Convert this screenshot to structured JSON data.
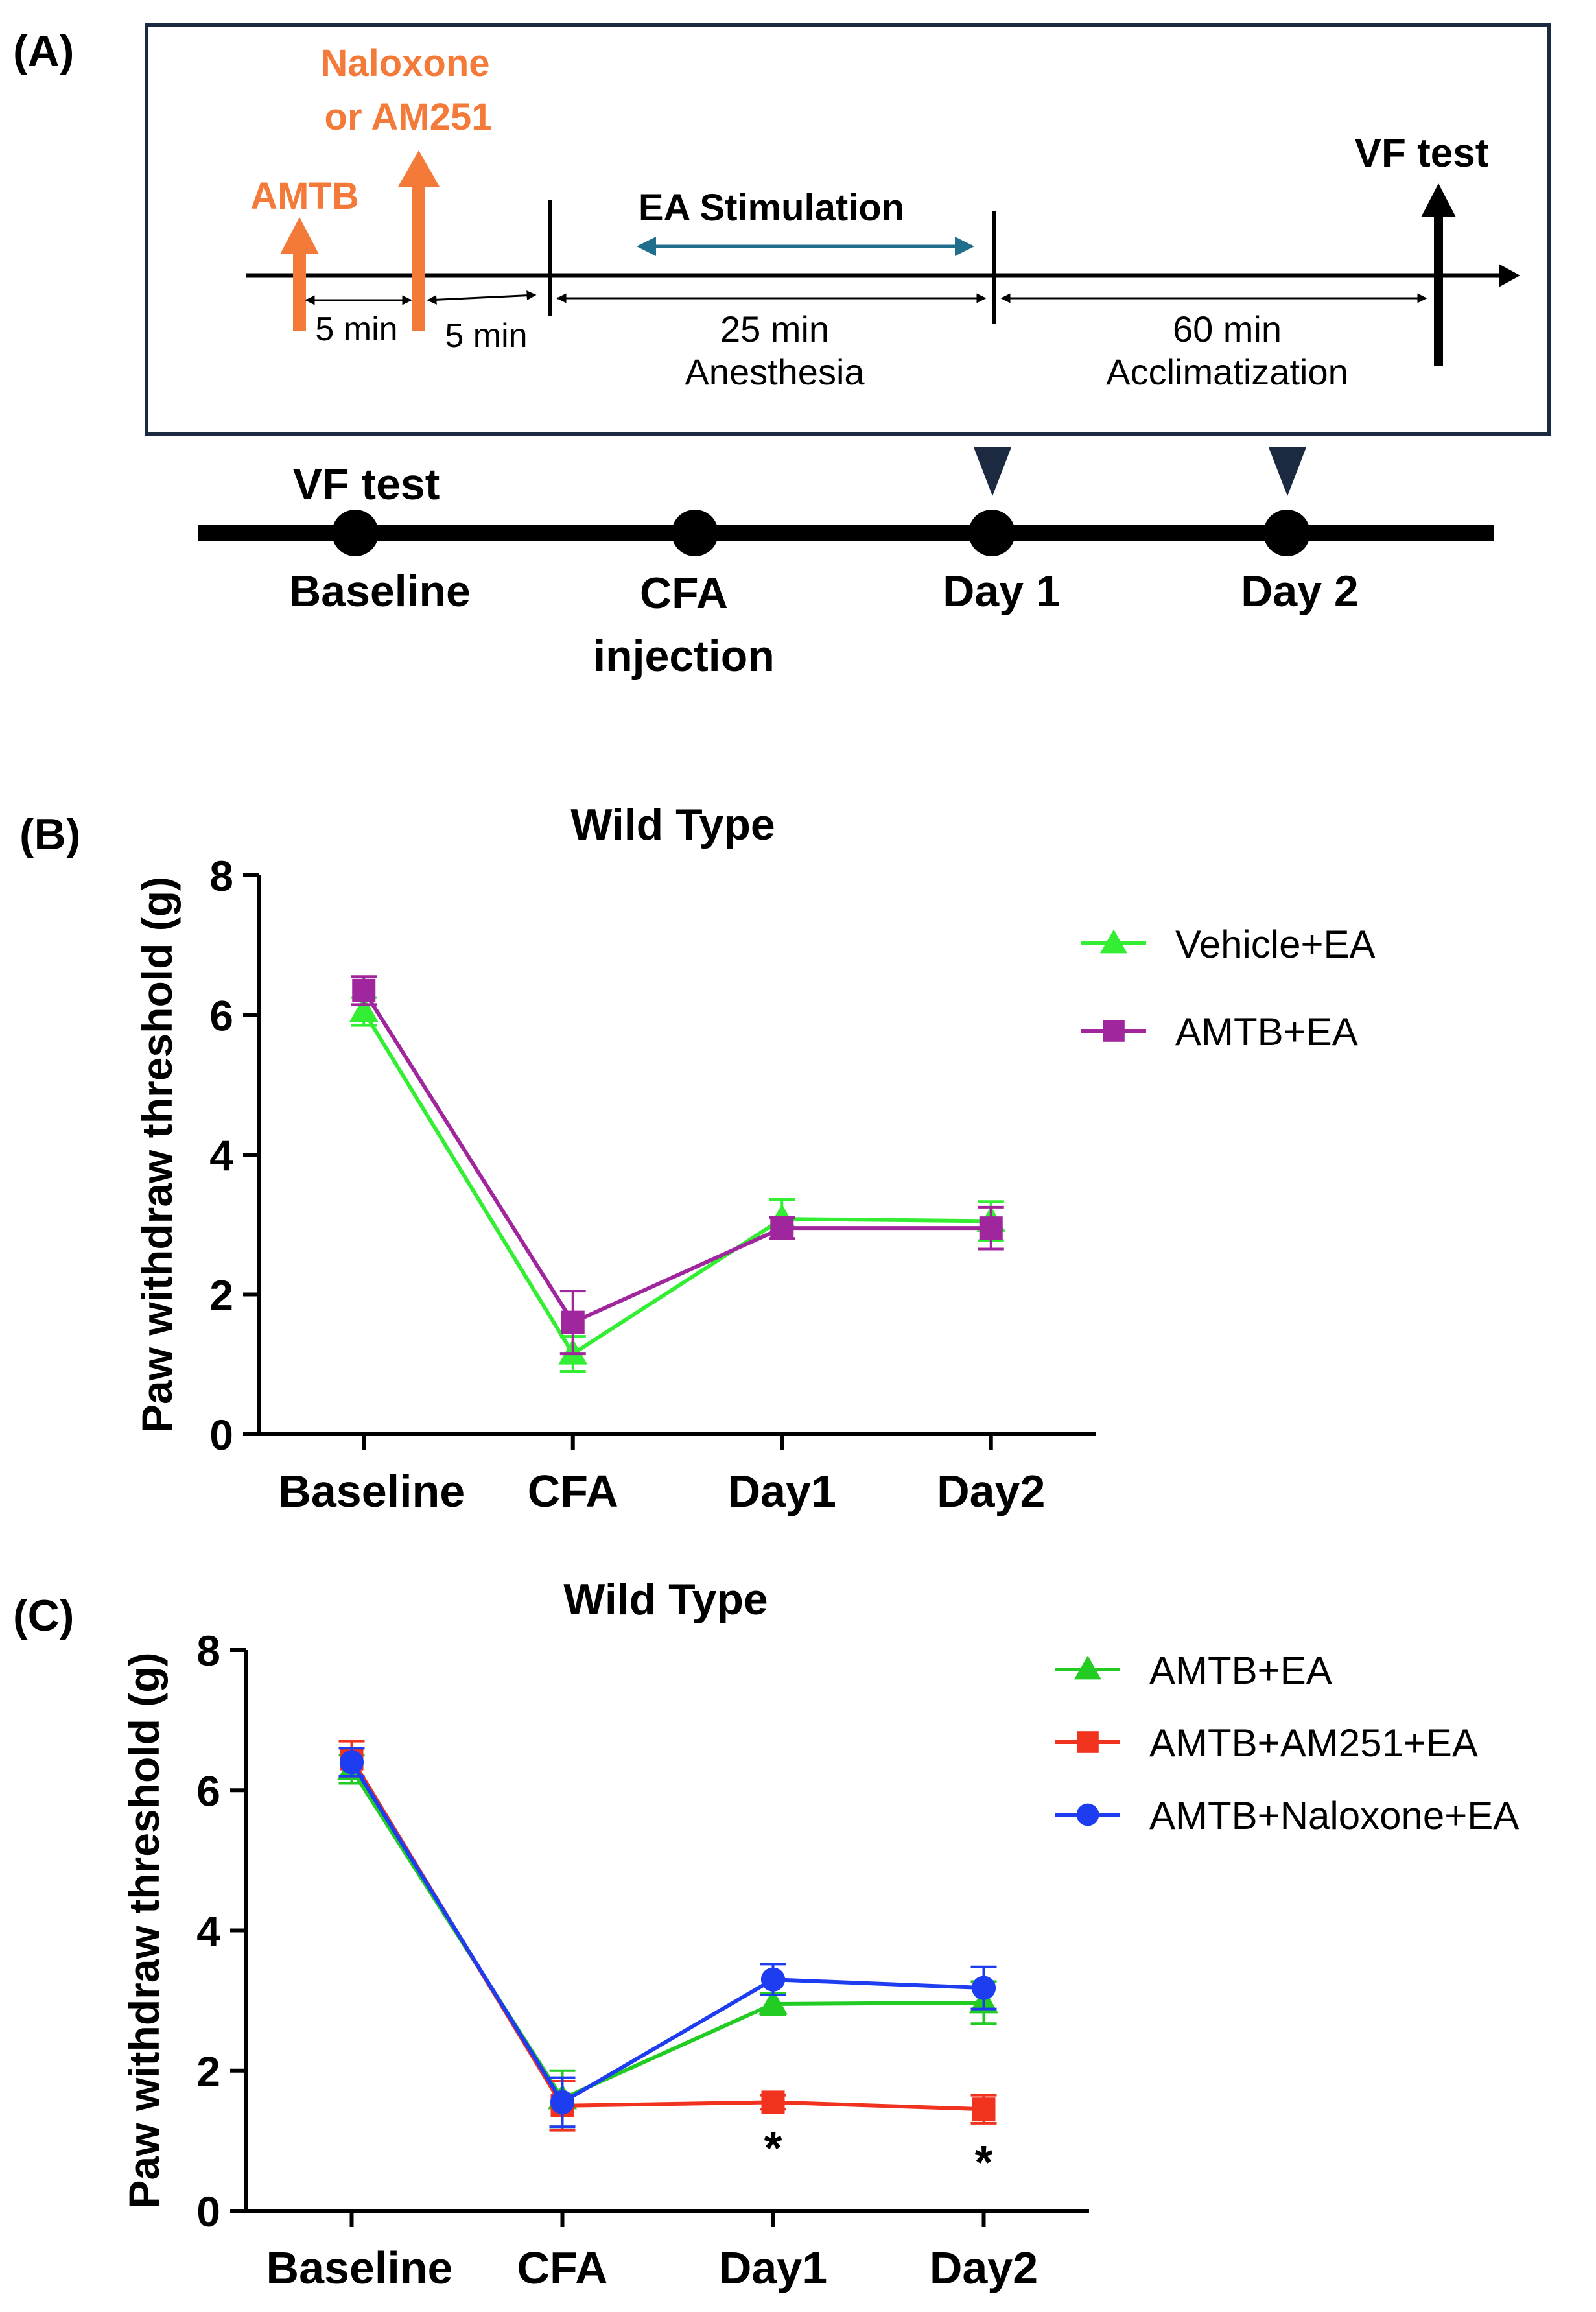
{
  "panels": {
    "a": {
      "label": "(A)"
    },
    "b": {
      "label": "(B)"
    },
    "c": {
      "label": "(C)"
    }
  },
  "protocol": {
    "drug_label_line1": "Naloxone",
    "drug_label_line2": "or AM251",
    "amtb_label": "AMTB",
    "interval1": "5 min",
    "interval2": "5 min",
    "ea_stimulation": "EA Stimulation",
    "anesthesia_duration": "25 min",
    "anesthesia_label": "Anesthesia",
    "acclimatization_duration": "60 min",
    "acclimatization_label": "Acclimatization",
    "vf_test": "VF test"
  },
  "timeline": {
    "vf_test": "VF test",
    "points": [
      "Baseline",
      "CFA",
      "Day 1",
      "Day 2"
    ],
    "cfa_second_line": "injection"
  },
  "colors": {
    "orange": "#F47A3A",
    "teal_arrow": "#1F6E8C",
    "marker_navy": "#1B2A41",
    "green": "#22CC22",
    "bright_green": "#33EE33",
    "purple": "#A0269E",
    "red": "#F0321E",
    "blue": "#1E3CF0"
  },
  "chart_data": [
    {
      "type": "line",
      "title": "Wild Type",
      "xlabel": "",
      "ylabel": "Paw withdraw threshold (g)",
      "categories": [
        "Baseline",
        "CFA",
        "Day1",
        "Day2"
      ],
      "ylim": [
        0,
        8
      ],
      "yticks": [
        0,
        2,
        4,
        6,
        8
      ],
      "legend_position": "top-right",
      "series": [
        {
          "name": "Vehicle+EA",
          "marker": "triangle",
          "color": "#33EE33",
          "values": [
            6.05,
            1.15,
            3.08,
            3.05
          ],
          "errors": [
            0.2,
            0.25,
            0.28,
            0.28
          ]
        },
        {
          "name": "AMTB+EA",
          "marker": "square",
          "color": "#A0269E",
          "values": [
            6.35,
            1.6,
            2.95,
            2.95
          ],
          "errors": [
            0.2,
            0.45,
            0.15,
            0.3
          ]
        }
      ],
      "annotations": []
    },
    {
      "type": "line",
      "title": "Wild Type",
      "xlabel": "",
      "ylabel": "Paw withdraw threshold (g)",
      "categories": [
        "Baseline",
        "CFA",
        "Day1",
        "Day2"
      ],
      "ylim": [
        0,
        8
      ],
      "yticks": [
        0,
        2,
        4,
        6,
        8
      ],
      "legend_position": "top-right",
      "series": [
        {
          "name": "AMTB+EA",
          "marker": "triangle",
          "color": "#22CC22",
          "values": [
            6.3,
            1.6,
            2.95,
            2.97
          ],
          "errors": [
            0.2,
            0.4,
            0.15,
            0.3
          ]
        },
        {
          "name": "AMTB+AM251+EA",
          "marker": "square",
          "color": "#F0321E",
          "values": [
            6.45,
            1.5,
            1.55,
            1.45
          ],
          "errors": [
            0.25,
            0.35,
            0.1,
            0.2
          ]
        },
        {
          "name": "AMTB+Naloxone+EA",
          "marker": "circle",
          "color": "#1E3CF0",
          "values": [
            6.4,
            1.55,
            3.3,
            3.18
          ],
          "errors": [
            0.2,
            0.35,
            0.22,
            0.3
          ]
        }
      ],
      "annotations": [
        {
          "category": "Day1",
          "text": "*"
        },
        {
          "category": "Day2",
          "text": "*"
        }
      ]
    }
  ]
}
